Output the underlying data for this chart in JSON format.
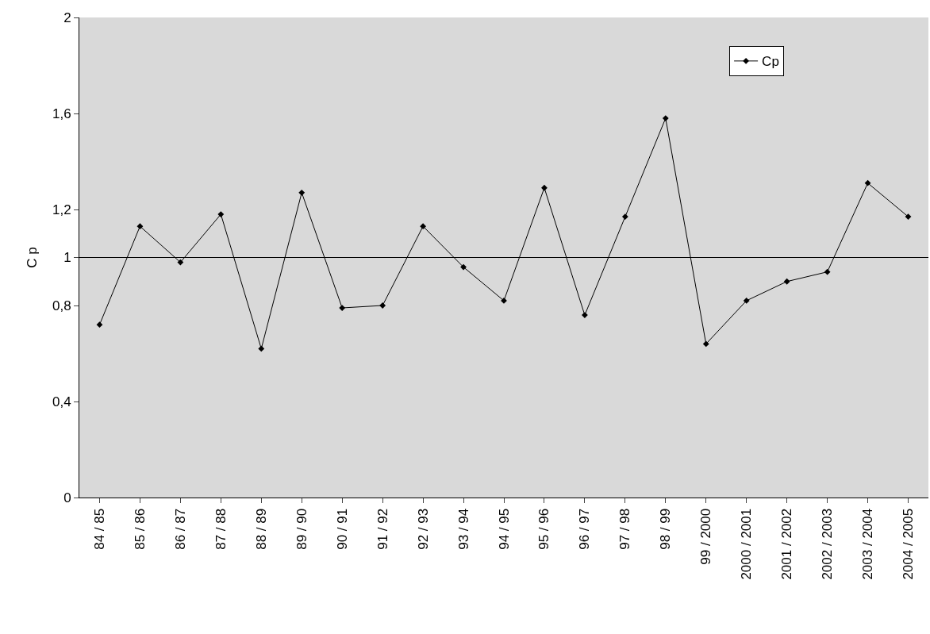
{
  "chart_data": {
    "type": "line",
    "ylabel": "C p",
    "categories": [
      "84 / 85",
      "85 / 86",
      "86 / 87",
      "87 / 88",
      "88 / 89",
      "89 / 90",
      "90 / 91",
      "91 / 92",
      "92 / 93",
      "93 / 94",
      "94 / 95",
      "95 / 96",
      "96 / 97",
      "97 / 98",
      "98 / 99",
      "99 / 2000",
      "2000 / 2001",
      "2001 / 2002",
      "2002 / 2003",
      "2003 / 2004",
      "2004 / 2005"
    ],
    "series": [
      {
        "name": "Cp",
        "color": "#000000",
        "values": [
          0.72,
          1.13,
          0.98,
          1.18,
          0.62,
          1.27,
          0.79,
          0.8,
          1.13,
          0.96,
          0.82,
          1.29,
          0.76,
          1.17,
          1.58,
          0.64,
          0.82,
          0.9,
          0.94,
          1.31,
          1.17
        ]
      }
    ],
    "ylim": [
      0,
      2
    ],
    "yticks": [
      0,
      {
        "value": 0.4,
        "label": "0,4"
      },
      {
        "value": 0.8,
        "label": "0,8"
      },
      1,
      {
        "value": 1.2,
        "label": "1,2"
      },
      {
        "value": 1.6,
        "label": "1,6"
      },
      2
    ],
    "ref_lines": [
      {
        "axis": "y",
        "value": 1,
        "color": "#000000"
      }
    ],
    "marker": "diamond",
    "line_style": "solid",
    "legend": "top right",
    "grid": false
  }
}
